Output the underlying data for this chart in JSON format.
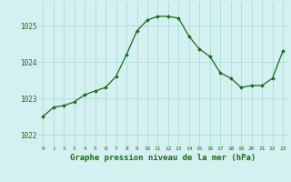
{
  "x": [
    0,
    1,
    2,
    3,
    4,
    5,
    6,
    7,
    8,
    9,
    10,
    11,
    12,
    13,
    14,
    15,
    16,
    17,
    18,
    19,
    20,
    21,
    22,
    23
  ],
  "y": [
    1022.5,
    1022.75,
    1022.8,
    1022.9,
    1023.1,
    1023.2,
    1023.3,
    1023.6,
    1024.2,
    1024.85,
    1025.15,
    1025.25,
    1025.25,
    1025.2,
    1024.7,
    1024.35,
    1024.15,
    1023.7,
    1023.55,
    1023.3,
    1023.35,
    1023.35,
    1023.55,
    1024.3
  ],
  "line_color": "#1a6b1a",
  "marker": "D",
  "marker_size": 1.8,
  "line_width": 0.9,
  "bg_color": "#d4f0f0",
  "grid_color": "#aadddd",
  "xlabel": "Graphe pression niveau de la mer (hPa)",
  "xlabel_color": "#1a6b1a",
  "xlabel_fontsize": 6.5,
  "ytick_labels": [
    "1022",
    "1023",
    "1024",
    "1025"
  ],
  "ytick_values": [
    1022,
    1023,
    1024,
    1025
  ],
  "ylim": [
    1021.7,
    1025.65
  ],
  "xlim": [
    -0.5,
    23.5
  ],
  "xtick_fontsize": 4.5,
  "ytick_fontsize": 5.5,
  "xlabel_bold": true
}
